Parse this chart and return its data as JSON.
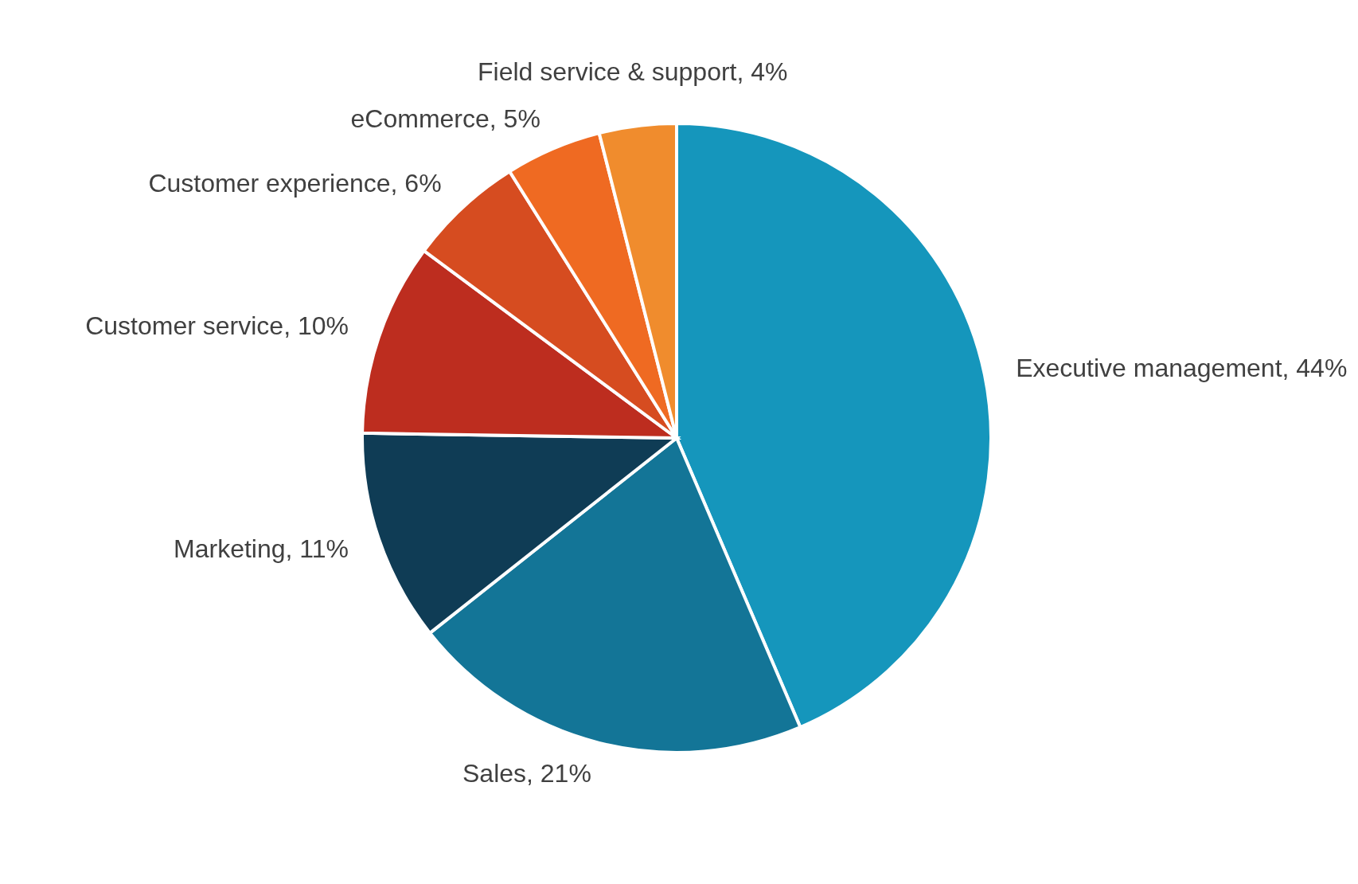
{
  "chart_data": {
    "type": "pie",
    "categories": [
      "Executive management",
      "Sales",
      "Marketing",
      "Customer service",
      "Customer experience",
      "eCommerce",
      "Field service & support"
    ],
    "values": [
      44,
      21,
      11,
      10,
      6,
      5,
      4
    ],
    "value_labels": [
      "44%",
      "21%",
      "11%",
      "10%",
      "6%",
      "5%",
      "4%"
    ],
    "colors": [
      "#1596bc",
      "#137597",
      "#0f3c55",
      "#bd2d1f",
      "#d64c20",
      "#ef6a22",
      "#f08c2d"
    ],
    "legend": false
  }
}
